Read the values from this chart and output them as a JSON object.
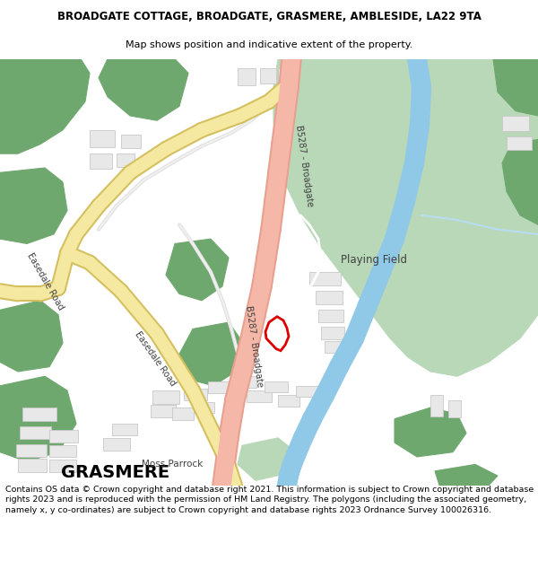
{
  "title_line1": "BROADGATE COTTAGE, BROADGATE, GRASMERE, AMBLESIDE, LA22 9TA",
  "title_line2": "Map shows position and indicative extent of the property.",
  "footer_text": "Contains OS data © Crown copyright and database right 2021. This information is subject to Crown copyright and database rights 2023 and is reproduced with the permission of HM Land Registry. The polygons (including the associated geometry, namely x, y co-ordinates) are subject to Crown copyright and database rights 2023 Ordnance Survey 100026316.",
  "map_bg": "#ffffff",
  "green_dark": "#6fa86f",
  "green_light": "#b8d8b8",
  "road_salmon": "#f5b8a8",
  "road_salmon_border": "#e8a090",
  "road_yellow": "#f5e8a0",
  "road_yellow_border": "#d4c060",
  "building_fill": "#e8e8e8",
  "building_edge": "#c8c8c8",
  "water_blue": "#90c8e8",
  "property_red": "#dd0000",
  "text_dark": "#404040",
  "label_grasmere": "GRASMERE",
  "label_playing_field": "Playing Field",
  "label_easedale1": "Easedale Road",
  "label_easedale2": "Easedale Road",
  "label_broadgate1": "B5287 - Broadgate",
  "label_broadgate2": "B5287 - Broadgate",
  "label_moss_parrock": "Moss Parrock"
}
